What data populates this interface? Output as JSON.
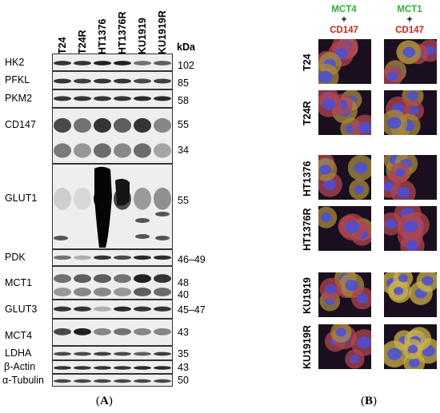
{
  "panel_a": {
    "lanes": [
      "T24",
      "T24R",
      "HT1376",
      "HT1376R",
      "KU1919",
      "KU1919R"
    ],
    "unit_label": "kDa",
    "blots": [
      {
        "protein": "HK2",
        "mw": [
          "102"
        ]
      },
      {
        "protein": "PFKL",
        "mw": [
          "85"
        ]
      },
      {
        "protein": "PKM2",
        "mw": [
          "58"
        ]
      },
      {
        "protein": "CD147",
        "mw": [
          "55",
          "34"
        ]
      },
      {
        "protein": "GLUT1",
        "mw": [
          "55"
        ]
      },
      {
        "protein": "PDK",
        "mw": [
          "46–49"
        ]
      },
      {
        "protein": "MCT1",
        "mw": [
          "48",
          "40"
        ]
      },
      {
        "protein": "GLUT3",
        "mw": [
          "45–47"
        ]
      },
      {
        "protein": "MCT4",
        "mw": [
          "43"
        ]
      },
      {
        "protein": "LDHA",
        "mw": [
          "35"
        ]
      },
      {
        "protein": "β-Actin",
        "mw": [
          "43"
        ]
      },
      {
        "protein": "α-Tubulin",
        "mw": [
          "50"
        ]
      }
    ],
    "caption_open": "(",
    "caption_letter": "A",
    "caption_close": ")"
  },
  "panel_b": {
    "columns": [
      {
        "marker": "MCT4",
        "plus": "+",
        "partner": "CD147"
      },
      {
        "marker": "MCT1",
        "plus": "+",
        "partner": "CD147"
      }
    ],
    "rows": [
      "T24",
      "T24R",
      "HT1376",
      "HT1376R",
      "KU1919",
      "KU1919R"
    ],
    "caption_open": "(",
    "caption_letter": "B",
    "caption_close": ")"
  },
  "colors": {
    "marker_green": "#2fae3a",
    "partner_red": "#e01818",
    "nucleus_blue": "#3b3fd8"
  }
}
